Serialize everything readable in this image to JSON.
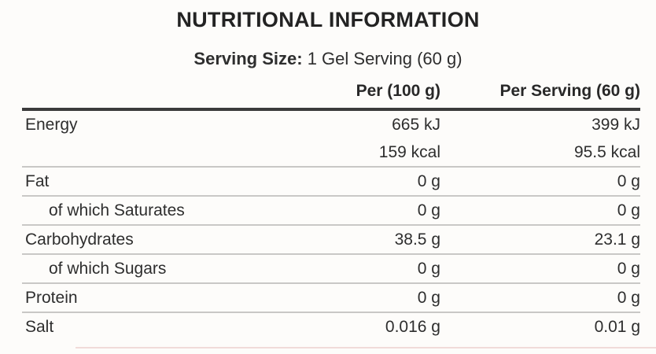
{
  "page": {
    "title": "NUTRITIONAL INFORMATION",
    "serving_size_label": "Serving Size:",
    "serving_size_value": "1 Gel Serving (60 g)"
  },
  "table": {
    "columns": {
      "per100": "Per (100 g)",
      "per_serving": "Per Serving (60 g)"
    },
    "rows": [
      {
        "label": "Energy",
        "per100": "665 kJ",
        "per_serving": "399 kJ"
      },
      {
        "label": "",
        "per100": "159 kcal",
        "per_serving": "95.5 kcal"
      },
      {
        "label": "Fat",
        "per100": "0 g",
        "per_serving": "0 g"
      },
      {
        "label": "of which Saturates",
        "per100": "0 g",
        "per_serving": "0 g"
      },
      {
        "label": "Carbohydrates",
        "per100": "38.5 g",
        "per_serving": "23.1 g"
      },
      {
        "label": "of which Sugars",
        "per100": "0 g",
        "per_serving": "0 g"
      },
      {
        "label": "Protein",
        "per100": "0 g",
        "per_serving": "0 g"
      },
      {
        "label": "Salt",
        "per100": "0.016 g",
        "per_serving": "0.01 g"
      }
    ]
  },
  "colors": {
    "background": "#fdfcfa",
    "text": "#2e2e2e",
    "header_rule": "#3b3b3b",
    "row_rule": "#c9c8c6"
  }
}
